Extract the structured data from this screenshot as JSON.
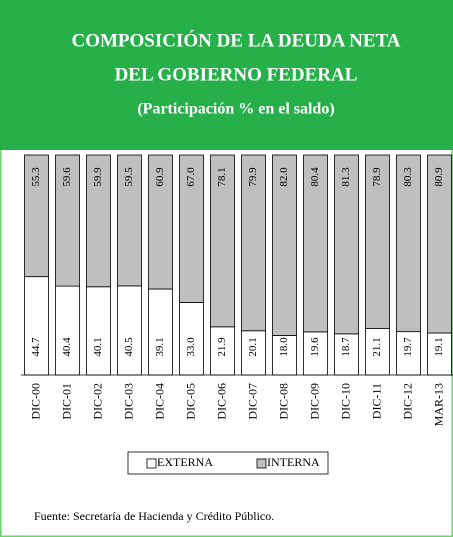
{
  "chart_data": {
    "type": "stacked_bar_100",
    "title_lines": [
      "COMPOSICIÓN  DE LA DEUDA NETA",
      "DEL GOBIERNO  FEDERAL"
    ],
    "subtitle": "(Participación % en el saldo)",
    "categories": [
      "DIC-00",
      "DIC-01",
      "DIC-02",
      "DIC-03",
      "DIC-04",
      "DIC-05",
      "DIC-06",
      "DIC-07",
      "DIC-08",
      "DIC-09",
      "DIC-10",
      "DIC-11",
      "DIC-12",
      "MAR-13"
    ],
    "series": [
      {
        "name": "EXTERNA",
        "color": "#ffffff",
        "values": [
          44.7,
          40.4,
          40.1,
          40.5,
          39.1,
          33.0,
          21.9,
          20.1,
          18.0,
          19.6,
          18.7,
          21.1,
          19.7,
          19.1
        ],
        "value_labels": [
          "44.7",
          "40.4",
          "40.1",
          "40.5",
          "39.1",
          "33.0",
          "21.9",
          "20.1",
          "18.0",
          "19.6",
          "18.7",
          "21.1",
          "19.7",
          "19.1"
        ]
      },
      {
        "name": "INTERNA",
        "color": "#bfbfbf",
        "values": [
          55.3,
          59.6,
          59.9,
          59.5,
          60.9,
          67.0,
          78.1,
          79.9,
          82.0,
          80.4,
          81.3,
          78.9,
          80.3,
          80.9
        ],
        "value_labels": [
          "55.3",
          "59.6",
          "59.9",
          "59.5",
          "60.9",
          "67.0",
          "78.1",
          "79.9",
          "82.0",
          "80.4",
          "81.3",
          "78.9",
          "80.3",
          "80.9"
        ]
      }
    ],
    "ylim": [
      0,
      100
    ],
    "note": "Fuente: Secretaría  de Hacienda y Crédito Público."
  }
}
